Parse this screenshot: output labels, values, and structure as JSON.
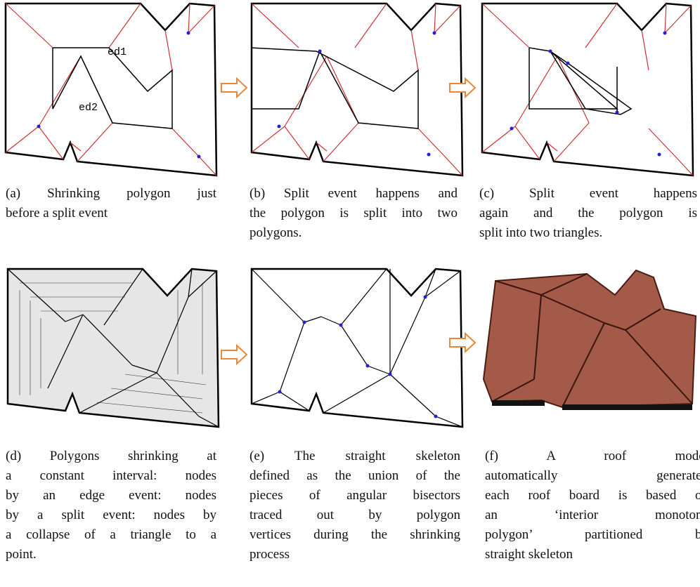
{
  "labels": {
    "ed1": "ed1",
    "ed2": "ed2"
  },
  "captions": [
    {
      "lines": [
        "(a) Shrinking polygon just",
        "before a split event"
      ]
    },
    {
      "lines": [
        "(b) Split event happens and",
        "the polygon is split into two",
        "polygons."
      ]
    },
    {
      "lines": [
        "(c) Split event happens",
        "again and the polygon is",
        "split into two triangles."
      ]
    },
    {
      "lines": [
        "(d) Polygons shrinking at",
        "a constant interval: nodes",
        "by an edge event: nodes",
        "by a split event: nodes by",
        "a collapse of a triangle to a",
        "point."
      ]
    },
    {
      "lines": [
        "(e) The straight skeleton",
        "defined as the union of the",
        "pieces of angular bisectors",
        "traced out by polygon",
        "vertices during the shrinking",
        "process"
      ]
    },
    {
      "lines": [
        "(f) A roof model",
        "automatically generated",
        "each roof board is based on",
        "an ‘interior monotone",
        "polygon’ partitioned by",
        "straight skeleton"
      ]
    }
  ]
}
